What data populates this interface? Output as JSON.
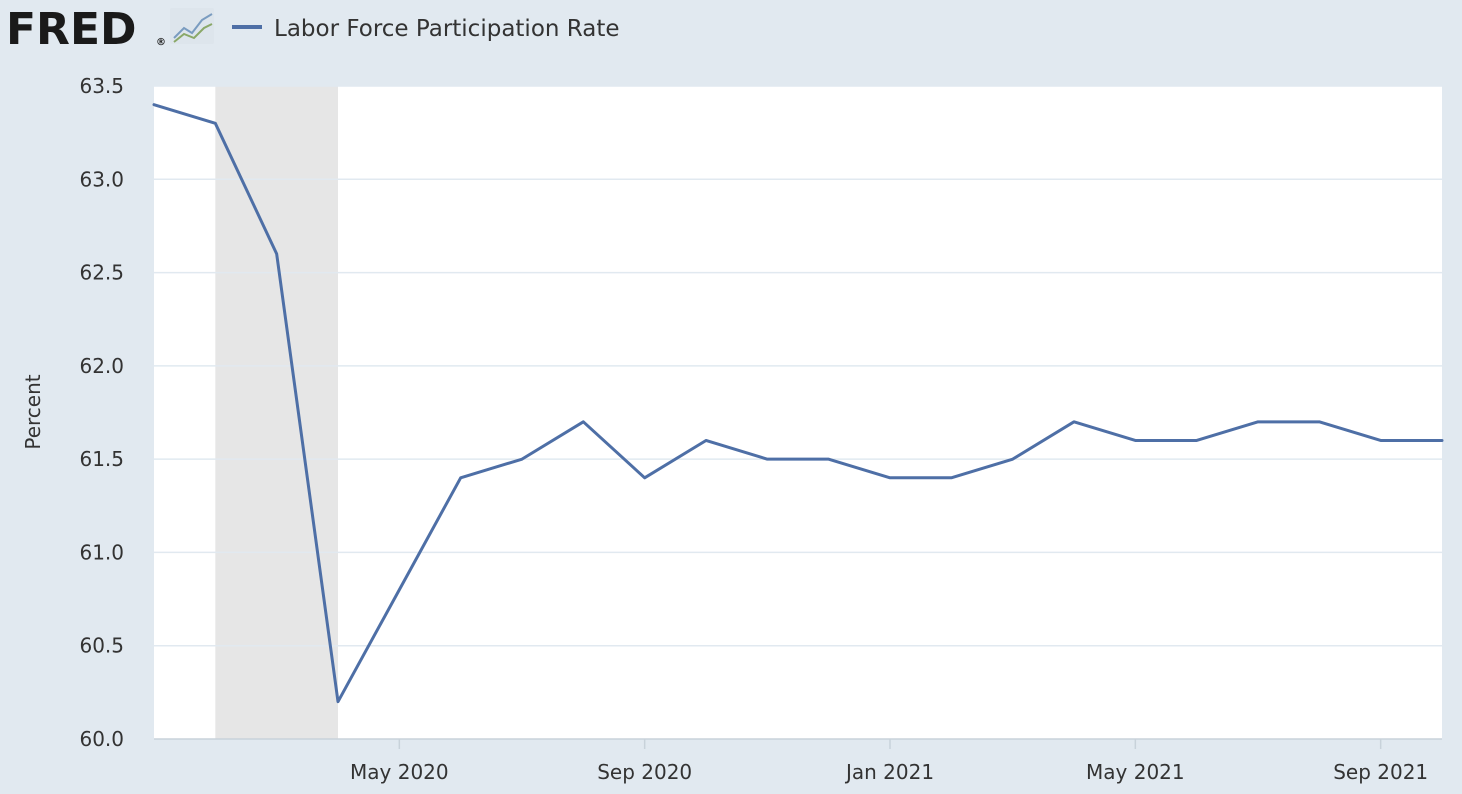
{
  "header": {
    "logo_text": "FRED",
    "logo_mark": "®",
    "logo_icon": "line-chart-icon"
  },
  "colors": {
    "background": "#e1e9f0",
    "plot_background": "#ffffff",
    "series_line": "#4e6fa6",
    "recession_shade": "#e6e6e6",
    "gridline": "#e1e9f0",
    "text": "#333333"
  },
  "chart_data": {
    "type": "line",
    "title": "",
    "xlabel": "",
    "ylabel": "Percent",
    "ylim": [
      60.0,
      63.5
    ],
    "yticks": [
      60.0,
      60.5,
      61.0,
      61.5,
      62.0,
      62.5,
      63.0,
      63.5
    ],
    "ytick_labels": [
      "60.0",
      "60.5",
      "61.0",
      "61.5",
      "62.0",
      "62.5",
      "63.0",
      "63.5"
    ],
    "xlim": [
      "2020-01",
      "2021-10"
    ],
    "xticks": [
      "2020-05",
      "2020-09",
      "2021-01",
      "2021-05",
      "2021-09"
    ],
    "xtick_labels": [
      "May 2020",
      "Sep 2020",
      "Jan 2021",
      "May 2021",
      "Sep 2021"
    ],
    "grid": true,
    "legend_position": "top-left",
    "recession_shading": [
      {
        "start": "2020-02",
        "end": "2020-04"
      }
    ],
    "x": [
      "2020-01",
      "2020-02",
      "2020-03",
      "2020-04",
      "2020-05",
      "2020-06",
      "2020-07",
      "2020-08",
      "2020-09",
      "2020-10",
      "2020-11",
      "2020-12",
      "2021-01",
      "2021-02",
      "2021-03",
      "2021-04",
      "2021-05",
      "2021-06",
      "2021-07",
      "2021-08",
      "2021-09",
      "2021-10"
    ],
    "series": [
      {
        "name": "Labor Force Participation Rate",
        "values": [
          63.4,
          63.3,
          62.6,
          60.2,
          60.8,
          61.4,
          61.5,
          61.7,
          61.4,
          61.6,
          61.5,
          61.5,
          61.4,
          61.4,
          61.5,
          61.7,
          61.6,
          61.6,
          61.7,
          61.7,
          61.6,
          61.6
        ]
      }
    ]
  }
}
